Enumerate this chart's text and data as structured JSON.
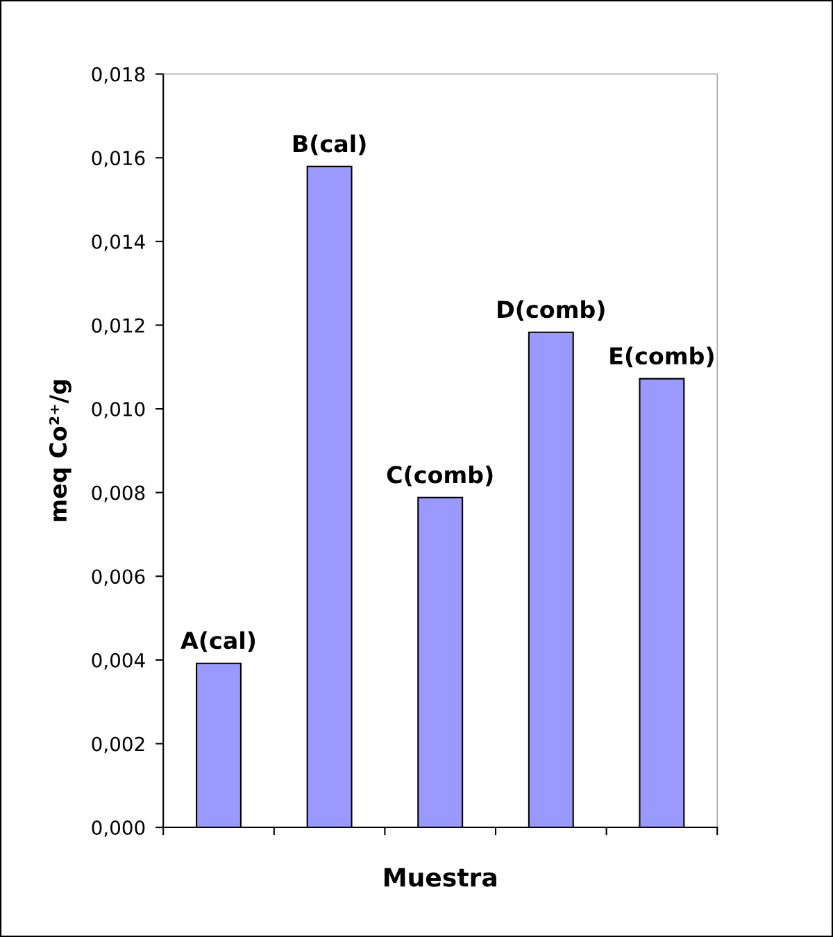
{
  "chart_data": {
    "type": "bar",
    "xlabel": "Muestra",
    "ylabel": "meq Co²⁺/g",
    "categories": [
      "A(cal)",
      "B(cal)",
      "C(comb)",
      "D(comb)",
      "E(comb)"
    ],
    "values": [
      0.00392,
      0.01579,
      0.00788,
      0.01183,
      0.01072
    ],
    "color": "#9999ff",
    "ylim": [
      0,
      0.018
    ],
    "yticks": [
      {
        "value": 0,
        "label": "0,000"
      },
      {
        "value": 0.002,
        "label": "0,002"
      },
      {
        "value": 0.004,
        "label": "0,004"
      },
      {
        "value": 0.006,
        "label": "0,006"
      },
      {
        "value": 0.008,
        "label": "0,008"
      },
      {
        "value": 0.01,
        "label": "0,010"
      },
      {
        "value": 0.012,
        "label": "0,012"
      },
      {
        "value": 0.014,
        "label": "0,014"
      },
      {
        "value": 0.016,
        "label": "0,016"
      },
      {
        "value": 0.018,
        "label": "0,018"
      }
    ],
    "grid": false,
    "legend": false
  }
}
